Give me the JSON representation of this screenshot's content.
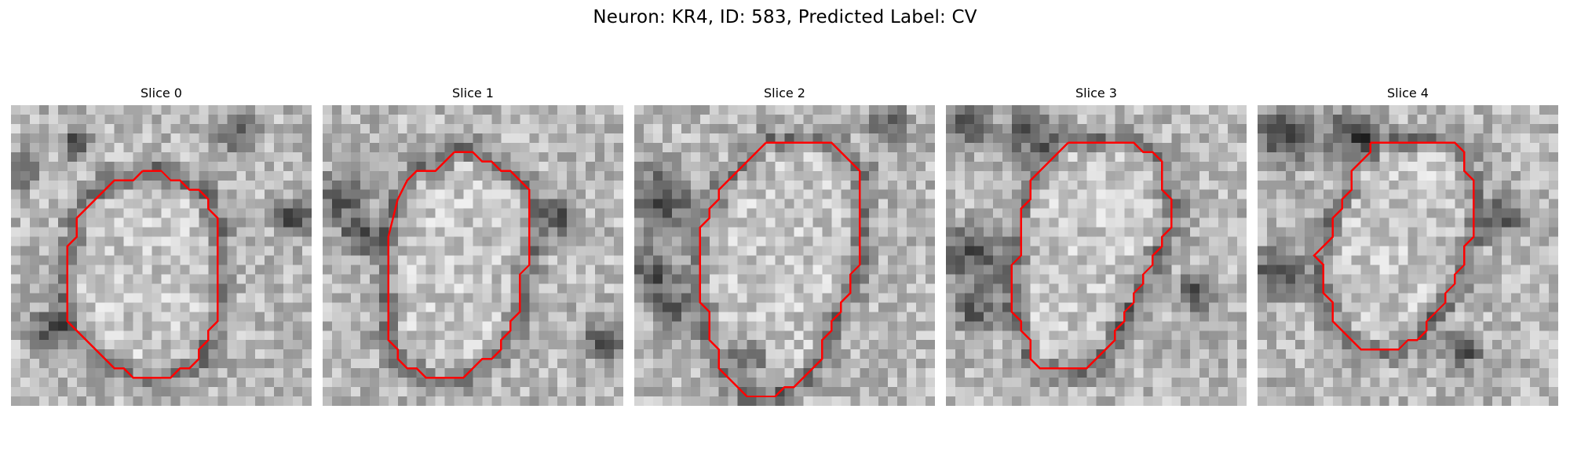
{
  "figure": {
    "title": "Neuron: KR4, ID: 583, Predicted Label: CV",
    "contour_color": "#ff0000"
  },
  "panels": [
    {
      "title": "Slice 0",
      "contour": [
        [
          14,
          7
        ],
        [
          16,
          7
        ],
        [
          17,
          8
        ],
        [
          18,
          8
        ],
        [
          19,
          9
        ],
        [
          20,
          9
        ],
        [
          21,
          10
        ],
        [
          21,
          11
        ],
        [
          22,
          12
        ],
        [
          22,
          23
        ],
        [
          21,
          24
        ],
        [
          21,
          25
        ],
        [
          20,
          26
        ],
        [
          20,
          27
        ],
        [
          19,
          28
        ],
        [
          18,
          28
        ],
        [
          17,
          29
        ],
        [
          13,
          29
        ],
        [
          12,
          28
        ],
        [
          11,
          28
        ],
        [
          8,
          25
        ],
        [
          7,
          24
        ],
        [
          6,
          23
        ],
        [
          6,
          15
        ],
        [
          7,
          14
        ],
        [
          7,
          12
        ],
        [
          8,
          11
        ],
        [
          9,
          10
        ],
        [
          10,
          9
        ],
        [
          11,
          8
        ],
        [
          13,
          8
        ]
      ]
    },
    {
      "title": "Slice 1",
      "contour": [
        [
          14,
          5
        ],
        [
          16,
          5
        ],
        [
          17,
          6
        ],
        [
          18,
          6
        ],
        [
          19,
          7
        ],
        [
          20,
          7
        ],
        [
          21,
          8
        ],
        [
          22,
          9
        ],
        [
          22,
          17
        ],
        [
          21,
          18
        ],
        [
          21,
          22
        ],
        [
          20,
          23
        ],
        [
          20,
          24
        ],
        [
          19,
          25
        ],
        [
          19,
          26
        ],
        [
          18,
          27
        ],
        [
          17,
          27
        ],
        [
          16,
          28
        ],
        [
          15,
          29
        ],
        [
          11,
          29
        ],
        [
          10,
          28
        ],
        [
          9,
          28
        ],
        [
          8,
          27
        ],
        [
          8,
          26
        ],
        [
          7,
          25
        ],
        [
          7,
          14
        ],
        [
          8,
          10
        ],
        [
          9,
          8
        ],
        [
          10,
          7
        ],
        [
          12,
          7
        ],
        [
          13,
          6
        ]
      ]
    },
    {
      "title": "Slice 2",
      "contour": [
        [
          14,
          4
        ],
        [
          21,
          4
        ],
        [
          22,
          5
        ],
        [
          23,
          6
        ],
        [
          24,
          7
        ],
        [
          24,
          17
        ],
        [
          23,
          18
        ],
        [
          23,
          20
        ],
        [
          22,
          21
        ],
        [
          22,
          22
        ],
        [
          21,
          23
        ],
        [
          21,
          24
        ],
        [
          20,
          25
        ],
        [
          20,
          27
        ],
        [
          19,
          28
        ],
        [
          18,
          29
        ],
        [
          17,
          30
        ],
        [
          16,
          30
        ],
        [
          15,
          31
        ],
        [
          12,
          31
        ],
        [
          11,
          30
        ],
        [
          10,
          29
        ],
        [
          9,
          28
        ],
        [
          9,
          26
        ],
        [
          8,
          25
        ],
        [
          8,
          22
        ],
        [
          7,
          21
        ],
        [
          7,
          13
        ],
        [
          8,
          12
        ],
        [
          8,
          11
        ],
        [
          9,
          10
        ],
        [
          9,
          9
        ],
        [
          10,
          8
        ],
        [
          11,
          7
        ],
        [
          12,
          6
        ],
        [
          13,
          5
        ]
      ]
    },
    {
      "title": "Slice 3",
      "contour": [
        [
          13,
          4
        ],
        [
          20,
          4
        ],
        [
          21,
          5
        ],
        [
          22,
          5
        ],
        [
          23,
          6
        ],
        [
          23,
          9
        ],
        [
          24,
          10
        ],
        [
          24,
          13
        ],
        [
          23,
          14
        ],
        [
          23,
          15
        ],
        [
          22,
          16
        ],
        [
          22,
          17
        ],
        [
          21,
          18
        ],
        [
          21,
          19
        ],
        [
          20,
          20
        ],
        [
          20,
          21
        ],
        [
          19,
          22
        ],
        [
          19,
          23
        ],
        [
          18,
          24
        ],
        [
          18,
          25
        ],
        [
          17,
          26
        ],
        [
          16,
          27
        ],
        [
          15,
          28
        ],
        [
          10,
          28
        ],
        [
          9,
          27
        ],
        [
          9,
          25
        ],
        [
          8,
          24
        ],
        [
          8,
          23
        ],
        [
          7,
          22
        ],
        [
          7,
          17
        ],
        [
          8,
          16
        ],
        [
          8,
          11
        ],
        [
          9,
          10
        ],
        [
          9,
          8
        ],
        [
          10,
          7
        ],
        [
          11,
          6
        ],
        [
          12,
          5
        ]
      ]
    },
    {
      "title": "Slice 4",
      "contour": [
        [
          12,
          4
        ],
        [
          21,
          4
        ],
        [
          22,
          5
        ],
        [
          22,
          7
        ],
        [
          23,
          8
        ],
        [
          23,
          14
        ],
        [
          22,
          15
        ],
        [
          22,
          17
        ],
        [
          21,
          18
        ],
        [
          21,
          19
        ],
        [
          20,
          20
        ],
        [
          20,
          21
        ],
        [
          19,
          22
        ],
        [
          18,
          23
        ],
        [
          18,
          24
        ],
        [
          17,
          25
        ],
        [
          16,
          25
        ],
        [
          15,
          26
        ],
        [
          11,
          26
        ],
        [
          10,
          25
        ],
        [
          9,
          24
        ],
        [
          8,
          23
        ],
        [
          8,
          21
        ],
        [
          7,
          20
        ],
        [
          7,
          17
        ],
        [
          6,
          16
        ],
        [
          7,
          15
        ],
        [
          8,
          14
        ],
        [
          8,
          12
        ],
        [
          9,
          11
        ],
        [
          9,
          10
        ],
        [
          10,
          9
        ],
        [
          10,
          7
        ],
        [
          11,
          6
        ],
        [
          12,
          5
        ]
      ]
    }
  ]
}
